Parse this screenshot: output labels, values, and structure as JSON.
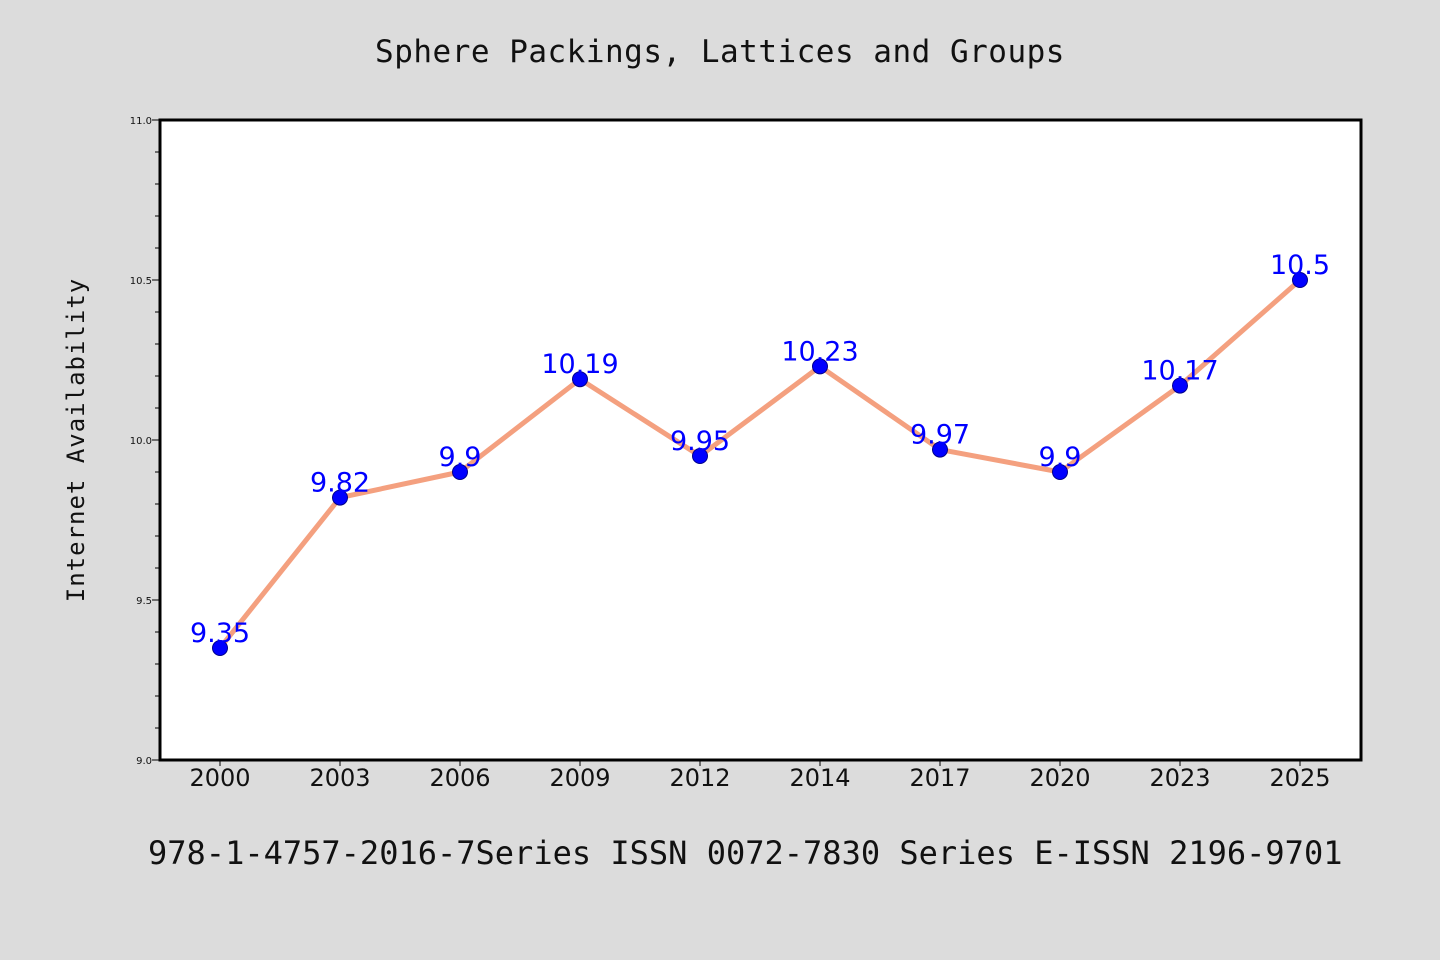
{
  "chart_data": {
    "type": "line",
    "title": "Sphere Packings, Lattices and Groups",
    "xlabel": "",
    "ylabel": "Internet Availability",
    "categories": [
      "2000",
      "2003",
      "2006",
      "2009",
      "2012",
      "2014",
      "2017",
      "2020",
      "2023",
      "2025"
    ],
    "series": [
      {
        "values": [
          9.35,
          9.82,
          9.9,
          10.19,
          9.95,
          10.23,
          9.97,
          9.9,
          10.17,
          10.5
        ],
        "line_color": "#f4a07f",
        "marker_color": "#0000ff"
      }
    ],
    "data_labels": [
      "9.35",
      "9.82",
      "9.9",
      "10.19",
      "9.95",
      "10.23",
      "9.97",
      "9.9",
      "10.17",
      "10.5"
    ],
    "ylim": [
      9.0,
      11.0
    ],
    "yticks": [
      "9.0",
      "9.5",
      "10.0",
      "10.5",
      "11.0"
    ],
    "grid": false,
    "legend": "none"
  },
  "footer": {
    "text": "978-1-4757-2016-7Series ISSN 0072-7830 Series E-ISSN 2196-9701"
  }
}
